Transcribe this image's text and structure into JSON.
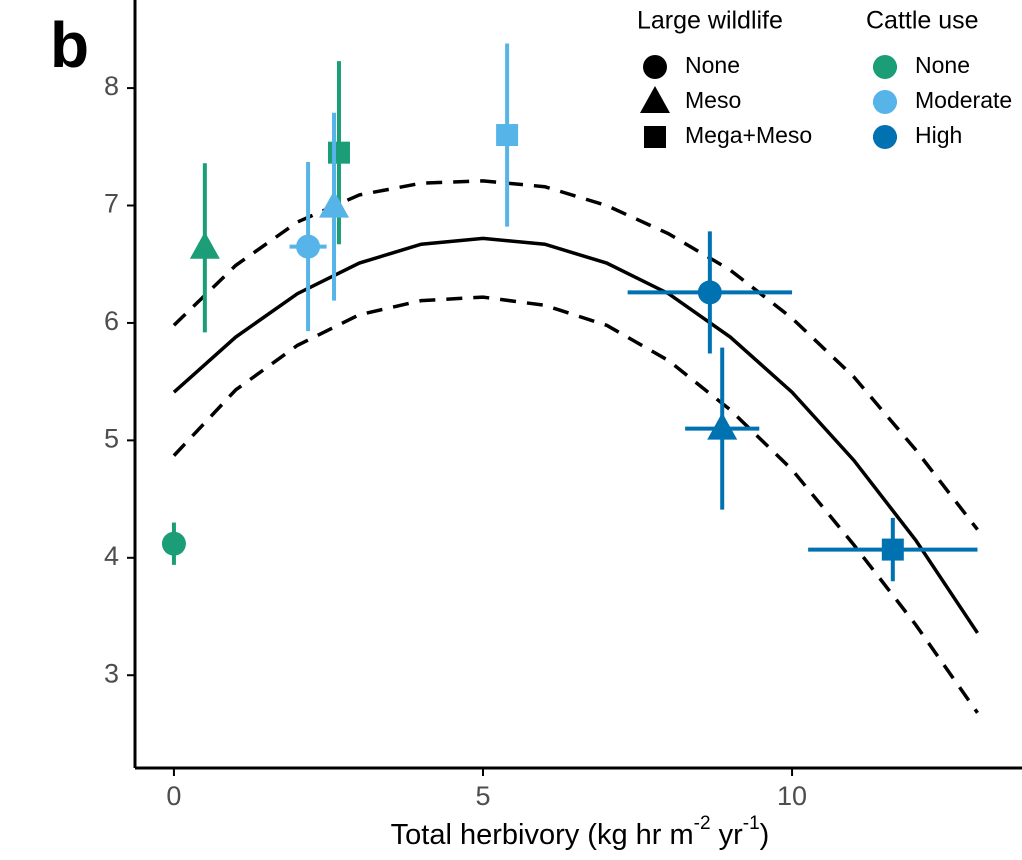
{
  "chart_data": {
    "type": "scatter",
    "panel_label": "b",
    "x_label_parts": [
      "Total herbivory (kg hr m",
      "-2",
      " yr",
      "-1",
      ")"
    ],
    "xlim": [
      -0.63,
      13.72
    ],
    "ylim": [
      2.21,
      8.75
    ],
    "xticks": [
      0,
      5,
      10
    ],
    "yticks": [
      3,
      4,
      5,
      6,
      7,
      8
    ],
    "shape_legend": {
      "title": "Large wildlife",
      "labels": [
        "None",
        "Meso",
        "Mega+Meso"
      ],
      "shapes": [
        "circle",
        "triangle",
        "square"
      ]
    },
    "color_legend_title": "Cattle use",
    "series": [
      {
        "name": "None",
        "color": "#1b9e77",
        "x": [
          0,
          0.5,
          2.67
        ],
        "values": [
          4.12,
          6.64,
          7.45
        ],
        "y_error": [
          0.18,
          0.72,
          0.78
        ],
        "x_error": [
          null,
          null,
          null
        ],
        "wildlife": [
          "None",
          "Meso",
          "Mega+Meso"
        ]
      },
      {
        "name": "Moderate",
        "color": "#56b4e9",
        "x": [
          2.17,
          2.59,
          5.39
        ],
        "values": [
          6.65,
          6.99,
          7.6
        ],
        "y_error": [
          0.72,
          0.8,
          0.78
        ],
        "x_error": [
          0.3,
          null,
          null
        ],
        "wildlife": [
          "None",
          "Meso",
          "Mega+Meso"
        ]
      },
      {
        "name": "High",
        "color": "#0072b2",
        "x": [
          8.67,
          8.87,
          11.63
        ],
        "values": [
          6.26,
          5.1,
          4.07
        ],
        "y_error": [
          0.52,
          0.69,
          0.27
        ],
        "x_error": [
          1.33,
          0.6,
          1.37
        ],
        "wildlife": [
          "None",
          "Meso",
          "Mega+Meso"
        ]
      }
    ],
    "lines": [
      {
        "style": "solid",
        "x": [
          0,
          1,
          2,
          3,
          4,
          5,
          6,
          7,
          8,
          9,
          10,
          11,
          12,
          13
        ],
        "values": [
          5.41,
          5.88,
          6.25,
          6.51,
          6.67,
          6.72,
          6.67,
          6.51,
          6.25,
          5.88,
          5.41,
          4.83,
          4.15,
          3.36
        ]
      },
      {
        "style": "dashed",
        "x": [
          0,
          1,
          2,
          3,
          4,
          5,
          6,
          7,
          8,
          9,
          10,
          11,
          12,
          13
        ],
        "values": [
          5.98,
          6.49,
          6.86,
          7.09,
          7.19,
          7.21,
          7.16,
          7.0,
          6.76,
          6.45,
          6.04,
          5.54,
          4.92,
          4.24
        ]
      },
      {
        "style": "dashed",
        "x": [
          0,
          1,
          2,
          3,
          4,
          5,
          6,
          7,
          8,
          9,
          10,
          11,
          12,
          13
        ],
        "values": [
          4.87,
          5.43,
          5.81,
          6.07,
          6.19,
          6.22,
          6.15,
          5.98,
          5.68,
          5.26,
          4.75,
          4.11,
          3.43,
          2.68
        ]
      }
    ]
  }
}
